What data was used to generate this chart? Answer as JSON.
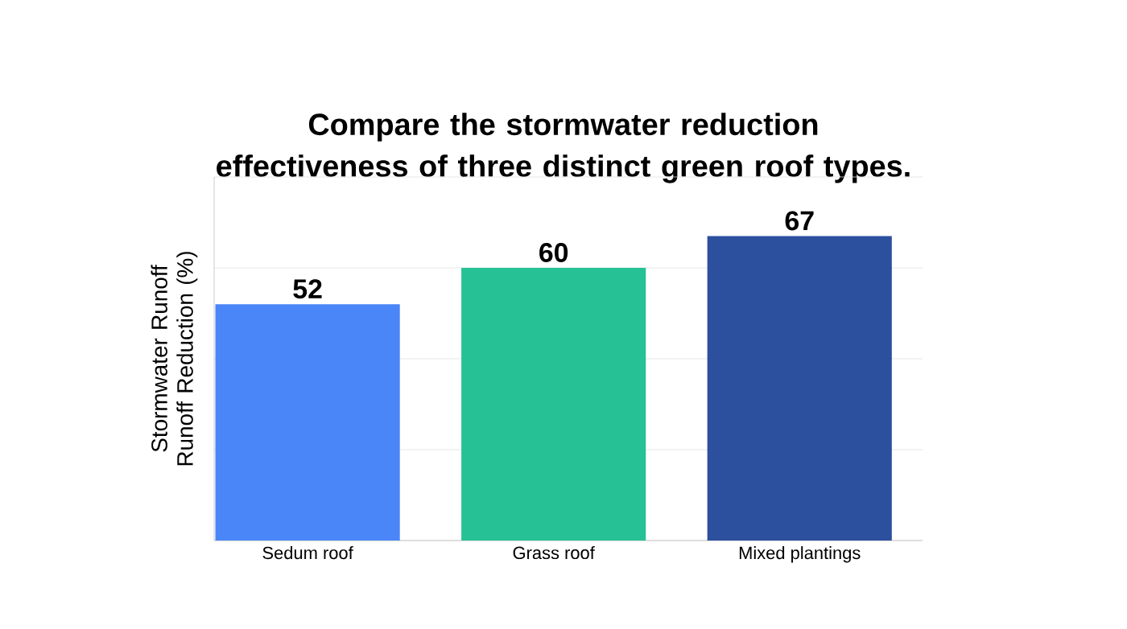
{
  "chart_data": {
    "type": "bar",
    "title": "Compare the stormwater reduction effectiveness of three distinct green roof types.",
    "ylabel": "Stormwater Runoff Runoff Reduction (%)",
    "categories": [
      "Sedum roof",
      "Grass roof",
      "Mixed plantings"
    ],
    "values": [
      52,
      60,
      67
    ],
    "colors": [
      "#4a86f7",
      "#26c296",
      "#2c4f9e"
    ],
    "ylim": [
      0,
      80
    ],
    "yticks": [
      {
        "value": 0,
        "label": null
      },
      {
        "value": 20,
        "label": null
      },
      {
        "value": 40,
        "label": null
      },
      {
        "value": 60,
        "label": null
      },
      {
        "value": 80,
        "label": null
      }
    ],
    "tick_labels": "x",
    "grid": "y",
    "data_labels": true
  }
}
